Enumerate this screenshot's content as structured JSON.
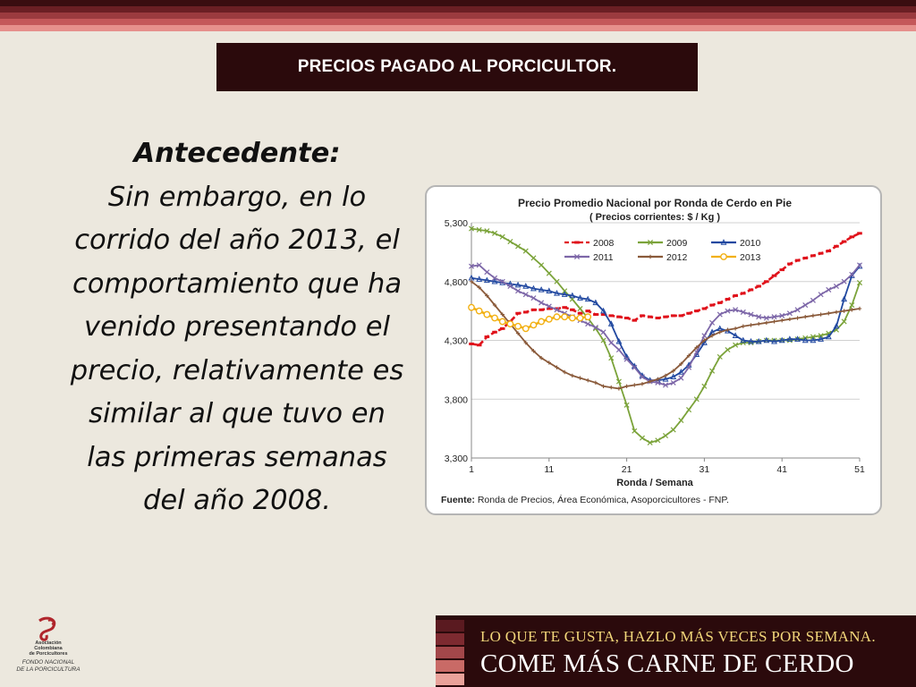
{
  "slide": {
    "title": "PRECIOS PAGADO AL PORCICULTOR.",
    "heading": "Antecedente:",
    "body": "Sin embargo, en lo corrido del año 2013, el comportamiento que ha venido presentando el precio, relativamente es similar al que tuvo en las primeras semanas del año 2008.",
    "body_lines": [
      "Sin embargo, en lo",
      "corrido del año 2013, el",
      "comportamiento que ha",
      "venido presentando el",
      "precio, relativamente es",
      "similar al que tuvo en",
      "las primeras semanas",
      "del año 2008."
    ]
  },
  "logo": {
    "lines": [
      "Asociación",
      "Colombiana",
      "de Porcicultores",
      "FONDO NACIONAL",
      "DE LA PORCICULTURA"
    ]
  },
  "banner": {
    "line1": "LO QUE TE GUSTA, HAZLO MÁS VECES POR SEMANA.",
    "line2": "COME MÁS CARNE DE CERDO"
  },
  "colors": {
    "stripe_colors": [
      "#3a0d10",
      "#6b1f24",
      "#9b3b3f",
      "#c4585a",
      "#e6908c"
    ],
    "title_bg": "#2b0a0c"
  },
  "chart_data": {
    "type": "line",
    "title": "Precio Promedio Nacional por Ronda de Cerdo en Pie",
    "subtitle": "( Precios corrientes: $ / Kg )",
    "xlabel": "Ronda / Semana",
    "ylabel": "",
    "xlim": [
      1,
      51
    ],
    "ylim": [
      3300,
      5300
    ],
    "xticks": [
      1,
      11,
      21,
      31,
      41,
      51
    ],
    "yticks": [
      3300,
      3800,
      4300,
      4800,
      5300
    ],
    "ytick_labels": [
      "3,300",
      "3,800",
      "4,300",
      "4,800",
      "5,300"
    ],
    "grid": "horizontal",
    "legend_position": "top-center",
    "source_label": "Fuente:",
    "source_text": " Ronda de Precios, Área Económica, Asoporcicultores - FNP.",
    "series": [
      {
        "name": "2008",
        "color": "#e0121b",
        "marker": "dash",
        "dashed": true,
        "values": [
          4270,
          4260,
          4330,
          4370,
          4400,
          4460,
          4530,
          4540,
          4560,
          4560,
          4570,
          4570,
          4580,
          4560,
          4530,
          4550,
          4520,
          4520,
          4510,
          4500,
          4490,
          4470,
          4510,
          4500,
          4490,
          4500,
          4510,
          4510,
          4530,
          4550,
          4570,
          4600,
          4620,
          4650,
          4680,
          4700,
          4730,
          4760,
          4800,
          4850,
          4900,
          4950,
          4980,
          5000,
          5020,
          5040,
          5060,
          5100,
          5140,
          5180,
          5210
        ]
      },
      {
        "name": "2009",
        "color": "#7ba33a",
        "marker": "x",
        "values": [
          5250,
          5240,
          5230,
          5210,
          5180,
          5140,
          5100,
          5060,
          5000,
          4940,
          4870,
          4800,
          4720,
          4650,
          4570,
          4490,
          4400,
          4300,
          4150,
          3950,
          3750,
          3530,
          3470,
          3430,
          3450,
          3490,
          3540,
          3620,
          3710,
          3800,
          3910,
          4040,
          4160,
          4220,
          4260,
          4280,
          4280,
          4290,
          4300,
          4300,
          4300,
          4300,
          4310,
          4320,
          4330,
          4340,
          4360,
          4390,
          4460,
          4600,
          4790
        ]
      },
      {
        "name": "2010",
        "color": "#2148a0",
        "marker": "triangle",
        "values": [
          4830,
          4820,
          4810,
          4800,
          4790,
          4780,
          4770,
          4760,
          4740,
          4730,
          4720,
          4700,
          4690,
          4680,
          4660,
          4650,
          4620,
          4550,
          4440,
          4290,
          4160,
          4080,
          4000,
          3960,
          3960,
          3970,
          3990,
          4030,
          4090,
          4180,
          4280,
          4370,
          4400,
          4380,
          4340,
          4300,
          4290,
          4290,
          4300,
          4290,
          4300,
          4310,
          4310,
          4300,
          4300,
          4310,
          4330,
          4420,
          4650,
          4850,
          4930
        ]
      },
      {
        "name": "2011",
        "color": "#7d67a8",
        "marker": "x",
        "values": [
          4930,
          4940,
          4880,
          4830,
          4800,
          4760,
          4720,
          4690,
          4660,
          4620,
          4590,
          4560,
          4530,
          4500,
          4470,
          4440,
          4410,
          4370,
          4280,
          4220,
          4140,
          4070,
          3990,
          3950,
          3940,
          3920,
          3940,
          3980,
          4070,
          4200,
          4340,
          4450,
          4520,
          4550,
          4560,
          4540,
          4520,
          4500,
          4490,
          4500,
          4510,
          4530,
          4560,
          4600,
          4640,
          4690,
          4730,
          4760,
          4800,
          4860,
          4940
        ]
      },
      {
        "name": "2012",
        "color": "#8a5a3a",
        "marker": "plus",
        "values": [
          4800,
          4750,
          4680,
          4600,
          4520,
          4440,
          4360,
          4280,
          4210,
          4150,
          4110,
          4070,
          4030,
          4000,
          3980,
          3960,
          3940,
          3910,
          3900,
          3890,
          3910,
          3920,
          3930,
          3950,
          3970,
          4000,
          4040,
          4100,
          4170,
          4240,
          4300,
          4340,
          4370,
          4390,
          4400,
          4420,
          4430,
          4440,
          4450,
          4460,
          4470,
          4480,
          4490,
          4500,
          4510,
          4520,
          4530,
          4540,
          4550,
          4560,
          4570
        ]
      },
      {
        "name": "2013",
        "color": "#f2b012",
        "marker": "circle",
        "values": [
          4580,
          4550,
          4520,
          4490,
          4460,
          4440,
          4420,
          4400,
          4430,
          4460,
          4480,
          4500,
          4500,
          4490,
          4490,
          4500
        ]
      }
    ]
  }
}
